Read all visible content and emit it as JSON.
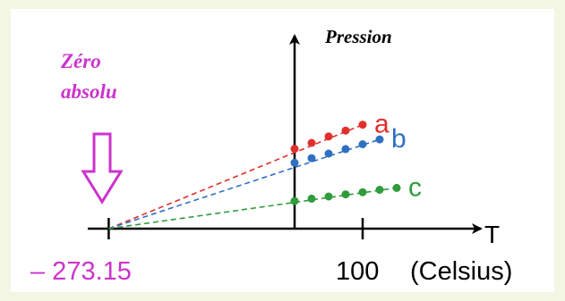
{
  "colors": {
    "background": "#f3f6e3",
    "panel": "#ffffff",
    "axis": "#000000",
    "annotation": "#cc33cc",
    "series_a": "#e0302e",
    "series_b": "#2f6fc4",
    "series_c": "#2f9b3c"
  },
  "annotation": {
    "line1": "Zéro",
    "line2": "absolu",
    "arrow_icon": "down-arrow-outline-icon"
  },
  "chart_data": {
    "type": "line",
    "title": "",
    "xlabel": "T",
    "ylabel": "Pression",
    "x_unit": "(Celsius)",
    "x_ticks": [
      {
        "value": -273.15,
        "label": "– 273.15"
      },
      {
        "value": 100,
        "label": "100"
      }
    ],
    "xlim": [
      -300,
      180
    ],
    "ylim": [
      0,
      5
    ],
    "extrapolation_point": [
      -273.15,
      0
    ],
    "series": [
      {
        "name": "a",
        "color": "#e0302e",
        "x": [
          0,
          25,
          50,
          75,
          100
        ],
        "y": [
          2.98,
          3.2,
          3.44,
          3.66,
          3.88
        ]
      },
      {
        "name": "b",
        "color": "#2f6fc4",
        "x": [
          0,
          25,
          50,
          75,
          100,
          125
        ],
        "y": [
          2.46,
          2.63,
          2.8,
          2.97,
          3.15,
          3.33
        ]
      },
      {
        "name": "c",
        "color": "#2f9b3c",
        "x": [
          0,
          25,
          50,
          75,
          100,
          125,
          150
        ],
        "y": [
          1.03,
          1.12,
          1.2,
          1.28,
          1.36,
          1.45,
          1.52
        ]
      }
    ]
  }
}
